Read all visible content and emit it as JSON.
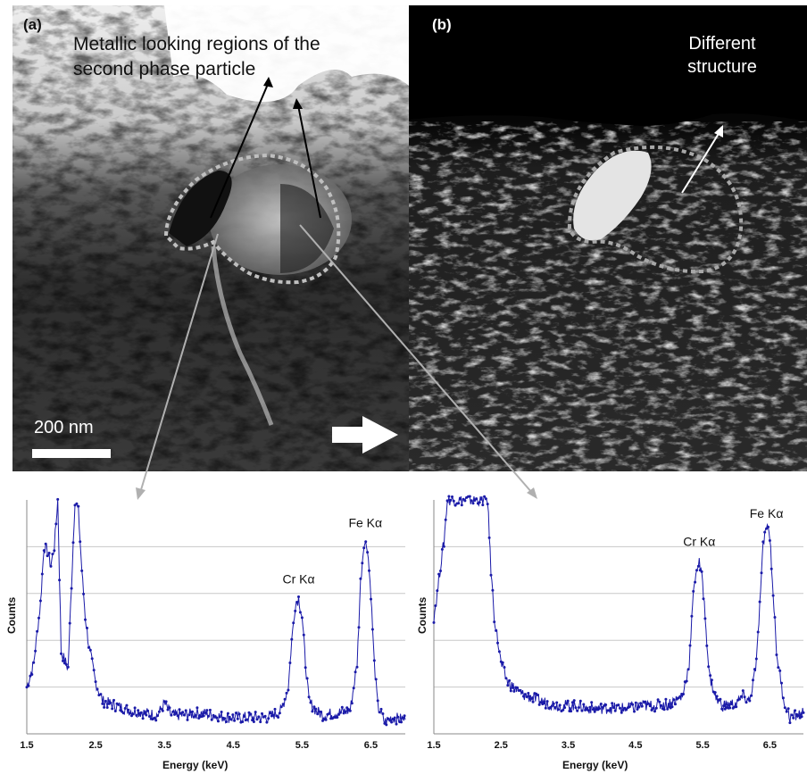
{
  "panel_a": {
    "label": "(a)",
    "annotation": "Metallic looking regions of the second phase particle",
    "scale_bar": "200 nm"
  },
  "panel_b": {
    "label": "(b)",
    "annotation": "Different structure"
  },
  "colors": {
    "spectrum": "#1a1aa8",
    "grid": "#c8c8c8",
    "leader": "#b0b0b0"
  },
  "chart_data": [
    {
      "type": "line",
      "xlabel": "Energy (keV)",
      "ylabel": "Counts",
      "xlim": [
        1.5,
        7.0
      ],
      "xticks": [
        "1.5",
        "2.5",
        "3.5",
        "4.5",
        "5.5",
        "6.5"
      ],
      "ylim": [
        0,
        1
      ],
      "annotations": [
        {
          "text": "Cr Kα",
          "x": 5.45,
          "y": 0.62
        },
        {
          "text": "Fe Kα",
          "x": 6.42,
          "y": 0.86
        }
      ],
      "x": [
        1.5,
        1.6,
        1.7,
        1.75,
        1.8,
        1.85,
        1.9,
        1.95,
        2.0,
        2.1,
        2.2,
        2.25,
        2.3,
        2.35,
        2.4,
        2.5,
        2.6,
        2.8,
        3.0,
        3.2,
        3.4,
        3.5,
        3.6,
        3.8,
        4.0,
        4.2,
        4.4,
        4.6,
        4.8,
        5.0,
        5.2,
        5.3,
        5.35,
        5.4,
        5.45,
        5.5,
        5.55,
        5.6,
        5.7,
        5.8,
        6.0,
        6.2,
        6.3,
        6.35,
        6.4,
        6.45,
        6.5,
        6.55,
        6.6,
        6.7,
        6.8,
        7.0
      ],
      "values": [
        0.2,
        0.3,
        0.56,
        0.8,
        0.78,
        0.72,
        0.8,
        1.0,
        0.35,
        0.28,
        1.0,
        0.95,
        0.7,
        0.5,
        0.38,
        0.22,
        0.14,
        0.12,
        0.1,
        0.09,
        0.08,
        0.13,
        0.08,
        0.08,
        0.09,
        0.08,
        0.07,
        0.07,
        0.07,
        0.07,
        0.1,
        0.2,
        0.4,
        0.55,
        0.58,
        0.5,
        0.3,
        0.14,
        0.1,
        0.08,
        0.09,
        0.1,
        0.3,
        0.65,
        0.82,
        0.8,
        0.6,
        0.3,
        0.12,
        0.05,
        0.07,
        0.06
      ]
    },
    {
      "type": "line",
      "xlabel": "Energy (keV)",
      "ylabel": "Counts",
      "xlim": [
        1.5,
        7.0
      ],
      "xticks": [
        "1.5",
        "2.5",
        "3.5",
        "4.5",
        "5.5",
        "6.5"
      ],
      "ylim": [
        0,
        1
      ],
      "annotations": [
        {
          "text": "Cr Kα",
          "x": 5.45,
          "y": 0.78
        },
        {
          "text": "Fe Kα",
          "x": 6.45,
          "y": 0.9
        }
      ],
      "x": [
        1.5,
        1.55,
        1.6,
        1.65,
        1.7,
        2.3,
        2.35,
        2.4,
        2.5,
        2.6,
        2.8,
        3.0,
        3.2,
        3.4,
        3.6,
        3.8,
        4.0,
        4.2,
        4.4,
        4.6,
        4.8,
        5.0,
        5.2,
        5.3,
        5.35,
        5.4,
        5.45,
        5.5,
        5.55,
        5.6,
        5.7,
        5.8,
        6.0,
        6.1,
        6.2,
        6.3,
        6.35,
        6.4,
        6.45,
        6.5,
        6.55,
        6.6,
        6.7,
        6.8,
        6.9,
        7.0
      ],
      "values": [
        0.5,
        0.6,
        0.72,
        0.82,
        1.0,
        1.0,
        0.7,
        0.5,
        0.3,
        0.22,
        0.17,
        0.15,
        0.13,
        0.12,
        0.12,
        0.11,
        0.11,
        0.11,
        0.11,
        0.12,
        0.12,
        0.13,
        0.16,
        0.3,
        0.55,
        0.7,
        0.73,
        0.65,
        0.45,
        0.25,
        0.15,
        0.12,
        0.13,
        0.16,
        0.14,
        0.3,
        0.55,
        0.8,
        0.9,
        0.85,
        0.6,
        0.35,
        0.15,
        0.07,
        0.08,
        0.09
      ]
    }
  ]
}
